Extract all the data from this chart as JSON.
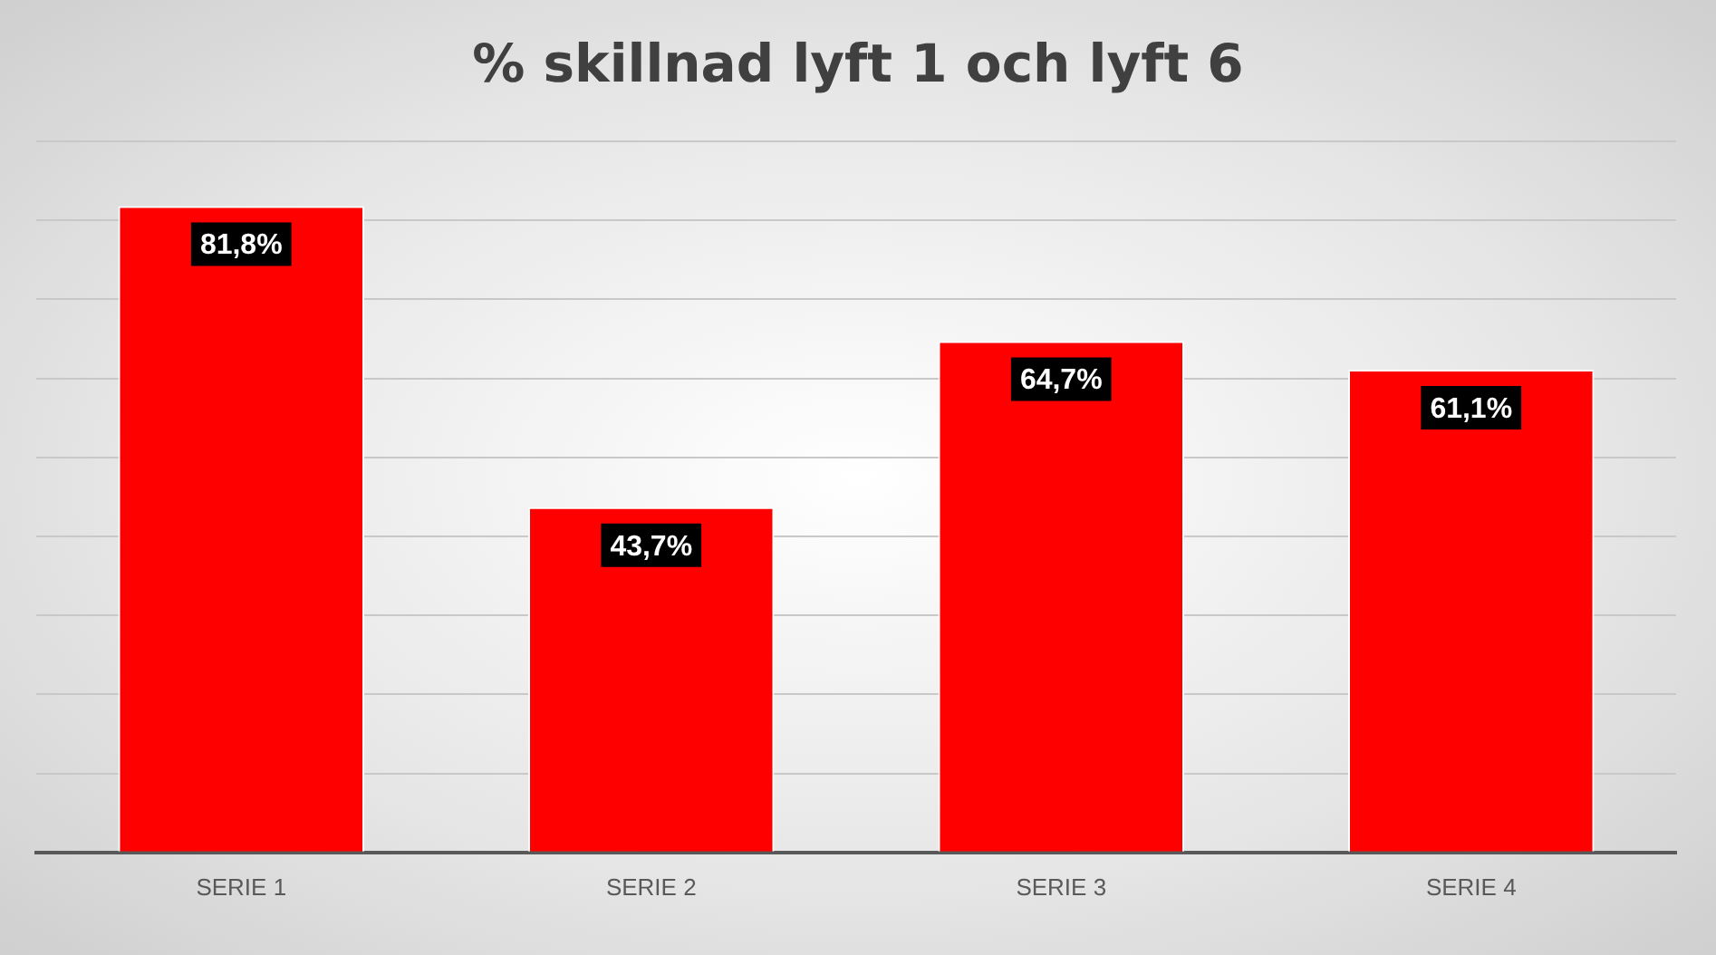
{
  "chart_data": {
    "type": "bar",
    "title": "% skillnad lyft 1 och lyft 6",
    "categories": [
      "SERIE 1",
      "SERIE 2",
      "SERIE 3",
      "SERIE 4"
    ],
    "values": [
      81.8,
      43.7,
      64.7,
      61.1
    ],
    "value_labels": [
      "81,8%",
      "43,7%",
      "64,7%",
      "61,1%"
    ],
    "color": "#ff0000",
    "ylim": [
      0,
      90
    ],
    "yticks": [
      {
        "value": 0,
        "label": null
      },
      {
        "value": 10,
        "label": null
      },
      {
        "value": 20,
        "label": null
      },
      {
        "value": 30,
        "label": null
      },
      {
        "value": 40,
        "label": null
      },
      {
        "value": 50,
        "label": null
      },
      {
        "value": 60,
        "label": null
      },
      {
        "value": 70,
        "label": null
      },
      {
        "value": 80,
        "label": null
      },
      {
        "value": 90,
        "label": null
      }
    ],
    "grid": "y",
    "tick_labels": "x",
    "legend": false
  }
}
